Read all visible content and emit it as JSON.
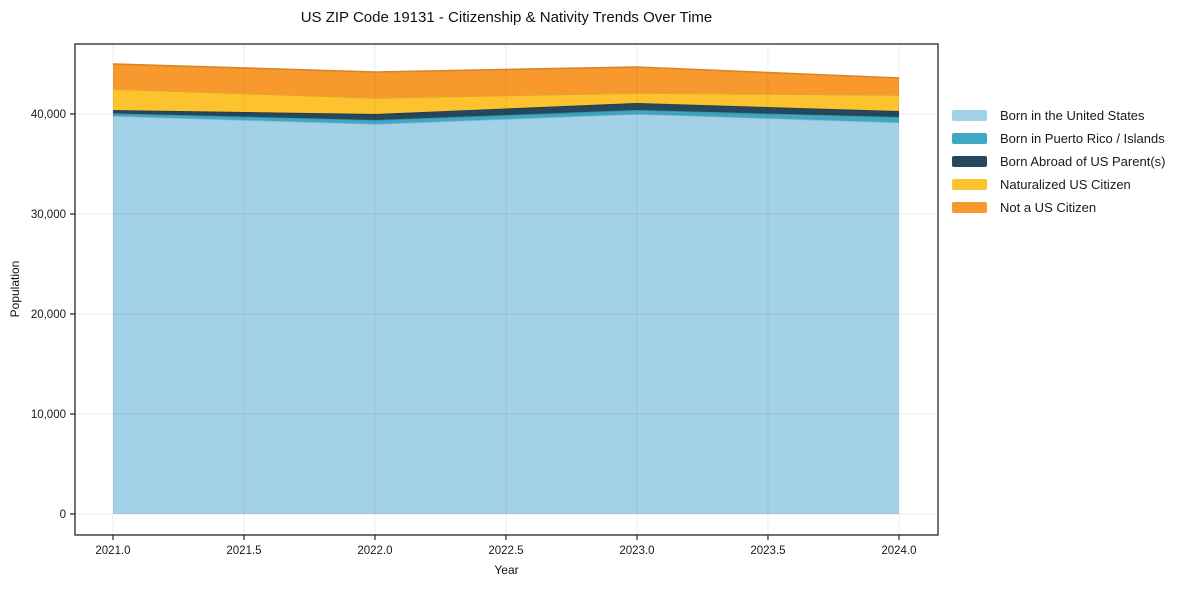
{
  "figure": {
    "title": "US ZIP Code 19131 - Citizenship & Nativity Trends Over Time"
  },
  "chart_data": {
    "type": "area",
    "stacked": true,
    "title": "US ZIP Code 19131 - Citizenship & Nativity Trends Over Time",
    "xlabel": "Year",
    "ylabel": "Population",
    "x": [
      2021,
      2022,
      2023,
      2024
    ],
    "series": [
      {
        "name": "Born in the United States",
        "color": "#a3d2e8",
        "values": [
          39800,
          39000,
          40000,
          39150
        ]
      },
      {
        "name": "Born in Puerto Rico / Islands",
        "color": "#3fa8c2",
        "values": [
          270,
          400,
          400,
          550
        ]
      },
      {
        "name": "Born Abroad of US Parent(s)",
        "color": "#26485c",
        "values": [
          330,
          600,
          700,
          600
        ]
      },
      {
        "name": "Naturalized US Citizen",
        "color": "#fdc32e",
        "values": [
          2100,
          1600,
          1000,
          1600
        ]
      },
      {
        "name": "Not a US Citizen",
        "color": "#f8992e",
        "values": [
          2500,
          2600,
          2600,
          1700
        ]
      }
    ],
    "xlim": [
      2020.855,
      2024.149
    ],
    "ylim": [
      -2100,
      47000
    ],
    "xticks": {
      "values": [
        2021.0,
        2021.5,
        2022.0,
        2022.5,
        2023.0,
        2023.5,
        2024.0
      ],
      "labels": [
        "2021.0",
        "2021.5",
        "2022.0",
        "2022.5",
        "2023.0",
        "2023.5",
        "2024.0"
      ]
    },
    "yticks": {
      "values": [
        0,
        10000,
        20000,
        30000,
        40000
      ],
      "labels": [
        "0",
        "10,000",
        "20,000",
        "30,000",
        "40,000"
      ]
    },
    "grid": true,
    "legend_position": "right"
  }
}
